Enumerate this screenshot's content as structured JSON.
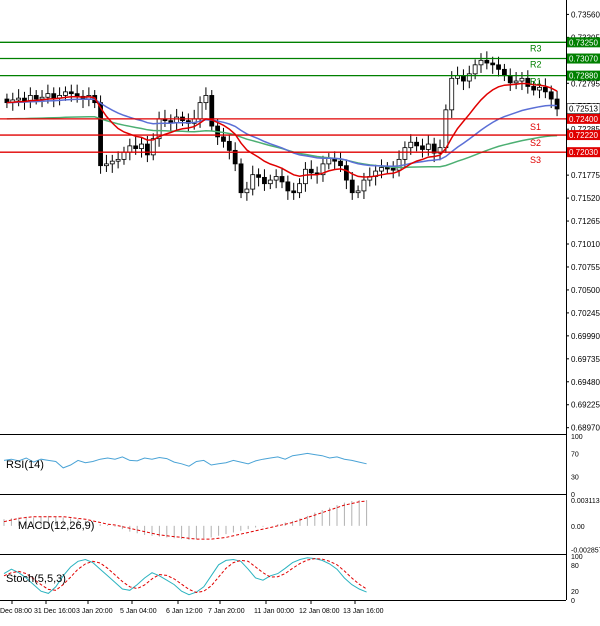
{
  "chart_data": {
    "type": "candlestick",
    "price_axis": {
      "ticks": [
        "0.73560",
        "0.73305",
        "0.73050",
        "0.72795",
        "0.72540",
        "0.72285",
        "0.72030",
        "0.71775",
        "0.71520",
        "0.71265",
        "0.71010",
        "0.70755",
        "0.70500",
        "0.70245",
        "0.69990",
        "0.69735",
        "0.69480",
        "0.69225",
        "0.68970"
      ],
      "ylim": [
        0.689,
        0.7372
      ]
    },
    "x_axis": {
      "labels": [
        "Dec 08:00",
        "31 Dec 16:00",
        "3 Jan 20:00",
        "5 Jan 04:00",
        "6 Jan 12:00",
        "7 Jan 20:00",
        "11 Jan 00:00",
        "12 Jan 08:00",
        "13 Jan 16:00"
      ],
      "bar_count": 95
    },
    "levels": [
      {
        "name": "R3",
        "value": 0.7325,
        "value_label": "0.73250",
        "color": "#008000"
      },
      {
        "name": "R2",
        "value": 0.7307,
        "value_label": "0.73070",
        "color": "#008000"
      },
      {
        "name": "R1",
        "value": 0.7288,
        "value_label": "0.72880",
        "color": "#008000"
      },
      {
        "name": "S1",
        "value": 0.724,
        "value_label": "0.72400",
        "color": "#e00000"
      },
      {
        "name": "S2",
        "value": 0.7222,
        "value_label": "0.72220",
        "color": "#e00000"
      },
      {
        "name": "S3",
        "value": 0.7203,
        "value_label": "0.72030",
        "color": "#e00000"
      }
    ],
    "current_price": {
      "value": 0.72513,
      "label": "0.72513"
    },
    "closes": [
      0.7258,
      0.7261,
      0.7263,
      0.726,
      0.7266,
      0.7262,
      0.7264,
      0.7268,
      0.7263,
      0.7266,
      0.727,
      0.7268,
      0.7265,
      0.7262,
      0.7266,
      0.7258,
      0.7188,
      0.719,
      0.7193,
      0.7195,
      0.7203,
      0.721,
      0.7207,
      0.7212,
      0.72,
      0.7218,
      0.724,
      0.7238,
      0.7236,
      0.7242,
      0.7238,
      0.7235,
      0.724,
      0.7258,
      0.7266,
      0.7232,
      0.722,
      0.7215,
      0.7205,
      0.719,
      0.7158,
      0.7162,
      0.7178,
      0.7175,
      0.7168,
      0.7172,
      0.7176,
      0.717,
      0.716,
      0.7158,
      0.7168,
      0.7184,
      0.718,
      0.7178,
      0.719,
      0.7196,
      0.7193,
      0.7188,
      0.7172,
      0.7158,
      0.716,
      0.7172,
      0.7176,
      0.7182,
      0.7186,
      0.7185,
      0.7183,
      0.7195,
      0.7208,
      0.7214,
      0.721,
      0.7206,
      0.7212,
      0.7202,
      0.7208,
      0.725,
      0.7285,
      0.7288,
      0.7282,
      0.729,
      0.73,
      0.7305,
      0.7302,
      0.73,
      0.7295,
      0.7288,
      0.728,
      0.7282,
      0.7285,
      0.7276,
      0.7272,
      0.7275,
      0.727,
      0.7262,
      0.7251
    ],
    "ma_red_end": 0.7238,
    "ma_blue_end": 0.7218,
    "ma_green_end": 0.7225,
    "rsi": {
      "label": "RSI(14)",
      "ticks": [
        "100",
        "70",
        "30",
        "0"
      ],
      "values": [
        58,
        60,
        57,
        62,
        55,
        60,
        58,
        56,
        45,
        50,
        58,
        54,
        56,
        60,
        62,
        60,
        64,
        58,
        57,
        62,
        60,
        63,
        61,
        55,
        52,
        48,
        56,
        58,
        50,
        52,
        54,
        58,
        55,
        52,
        57,
        60,
        62,
        64,
        60,
        66,
        68,
        70,
        68,
        66,
        62,
        64,
        60,
        58,
        55,
        52
      ]
    },
    "macd": {
      "label": "MACD(12,26,9)",
      "ticks": [
        "0.003113",
        "0.00",
        "-0.002857"
      ],
      "hist": [
        0.0008,
        0.0009,
        0.001,
        0.0011,
        0.001,
        0.0011,
        0.0012,
        0.0011,
        0.001,
        0.0009,
        0.0008,
        0.0006,
        0.0004,
        0.0002,
        0.0001,
        -0.0001,
        -0.0004,
        -0.0007,
        -0.0009,
        -0.0011,
        -0.0012,
        -0.0013,
        -0.0014,
        -0.0015,
        -0.0016,
        -0.0017,
        -0.0016,
        -0.0015,
        -0.0014,
        -0.0012,
        -0.001,
        -0.0008,
        -0.0006,
        -0.0004,
        -0.0002,
        -0.0001,
        0.0,
        0.0002,
        0.0004,
        0.0006,
        0.0009,
        0.0012,
        0.0016,
        0.0019,
        0.0022,
        0.0025,
        0.0028,
        0.003,
        0.0031,
        0.0031
      ],
      "signal": [
        0.0005,
        0.0007,
        0.0009,
        0.001,
        0.0011,
        0.0011,
        0.0011,
        0.0011,
        0.0011,
        0.001,
        0.0009,
        0.0008,
        0.0006,
        0.0004,
        0.0002,
        0.0001,
        -0.0001,
        -0.0003,
        -0.0005,
        -0.0007,
        -0.0009,
        -0.0011,
        -0.0012,
        -0.0013,
        -0.0014,
        -0.0015,
        -0.0016,
        -0.0016,
        -0.0016,
        -0.0015,
        -0.0014,
        -0.0012,
        -0.001,
        -0.0008,
        -0.0006,
        -0.0004,
        -0.0002,
        0.0,
        0.0002,
        0.0004,
        0.0007,
        0.001,
        0.0013,
        0.0016,
        0.0019,
        0.0022,
        0.0025,
        0.0027,
        0.0029,
        0.003
      ]
    },
    "stoch": {
      "label": "Stoch(5,5,3)",
      "ticks": [
        "100",
        "80",
        "20",
        "0"
      ],
      "main": [
        60,
        70,
        62,
        50,
        35,
        20,
        15,
        30,
        55,
        75,
        88,
        92,
        85,
        70,
        55,
        40,
        25,
        22,
        35,
        50,
        62,
        55,
        45,
        35,
        20,
        12,
        18,
        30,
        55,
        80,
        90,
        92,
        88,
        70,
        50,
        45,
        55,
        60,
        72,
        85,
        92,
        96,
        94,
        90,
        82,
        70,
        50,
        35,
        25,
        18
      ],
      "signal": [
        55,
        62,
        65,
        60,
        48,
        35,
        24,
        22,
        35,
        52,
        70,
        82,
        88,
        84,
        72,
        57,
        42,
        30,
        26,
        34,
        48,
        58,
        56,
        48,
        36,
        24,
        17,
        20,
        32,
        52,
        72,
        85,
        90,
        88,
        75,
        62,
        52,
        53,
        60,
        72,
        83,
        91,
        94,
        93,
        88,
        80,
        66,
        50,
        36,
        25
      ]
    },
    "colors": {
      "bull": "#ffffff",
      "bear": "#000000",
      "ma_red": "#e00000",
      "ma_blue": "#5b6fd6",
      "ma_green": "#4caf72",
      "rsi_line": "#4aa3d6",
      "stoch_main": "#2bb3c0",
      "stoch_signal": "#e00000",
      "macd_signal": "#e00000",
      "macd_hist": "#b0b0b0",
      "grid_bg": "#ffffff",
      "axis_label_bg": "#e00000"
    }
  }
}
